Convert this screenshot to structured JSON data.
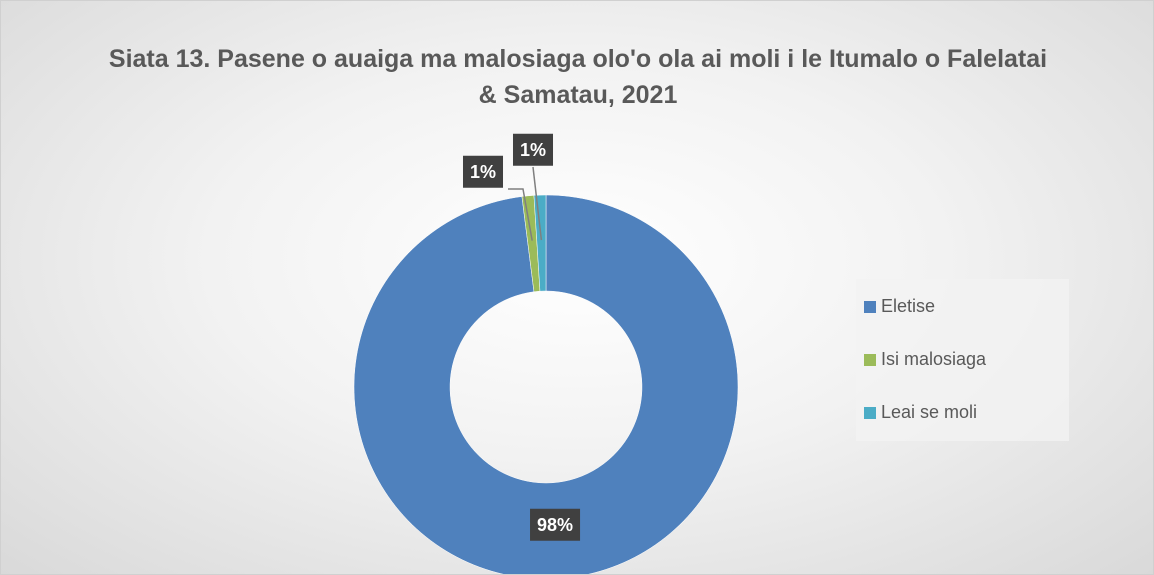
{
  "chart_data": {
    "type": "donut",
    "title": "Siata 13. Pasene o auaiga ma malosiaga olo'o ola ai moli i le Itumalo o Falelatai & Samatau, 2021",
    "categories": [
      "Eletise",
      "Isi malosiaga",
      "Leai se moli"
    ],
    "values": [
      98,
      1,
      1
    ],
    "value_labels": [
      "98%",
      "1%",
      "1%"
    ],
    "colors": [
      "#4f81bd",
      "#9bbb59",
      "#4bacc6"
    ],
    "legend": "right"
  }
}
